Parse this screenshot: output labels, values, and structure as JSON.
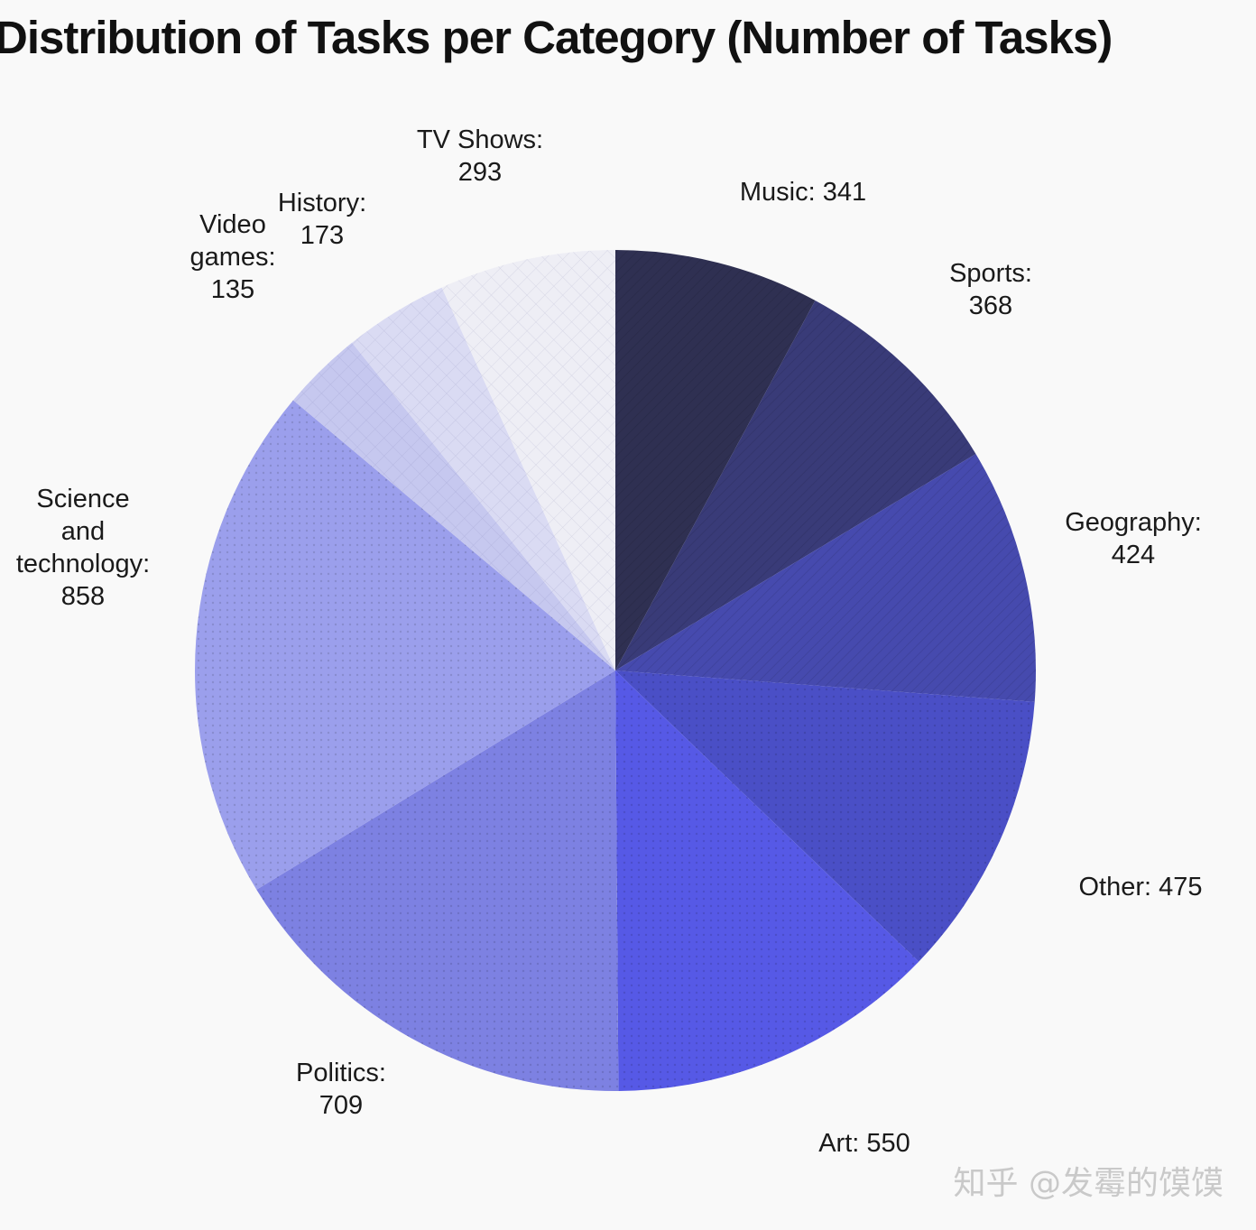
{
  "chart_data": {
    "type": "pie",
    "title": "Distribution of Tasks per Category (Number of Tasks)",
    "start": "top",
    "direction": "clockwise",
    "slices": [
      {
        "name": "Music",
        "value": 341,
        "color": "#2f3052"
      },
      {
        "name": "Sports",
        "value": 368,
        "color": "#393b78"
      },
      {
        "name": "Geography",
        "value": 424,
        "color": "#464aae"
      },
      {
        "name": "Other",
        "value": 475,
        "color": "#4a4fc6"
      },
      {
        "name": "Art",
        "value": 550,
        "color": "#5659e6"
      },
      {
        "name": "Politics",
        "value": 709,
        "color": "#7d81e2"
      },
      {
        "name": "Science and technology",
        "value": 858,
        "color": "#9b9fec"
      },
      {
        "name": "Video games",
        "value": 135,
        "color": "#c6c8ef"
      },
      {
        "name": "History",
        "value": 173,
        "color": "#dadbf3"
      },
      {
        "name": "TV Shows",
        "value": 293,
        "color": "#eeeef5"
      }
    ]
  },
  "watermark": "知乎 @发霉的馍馍"
}
